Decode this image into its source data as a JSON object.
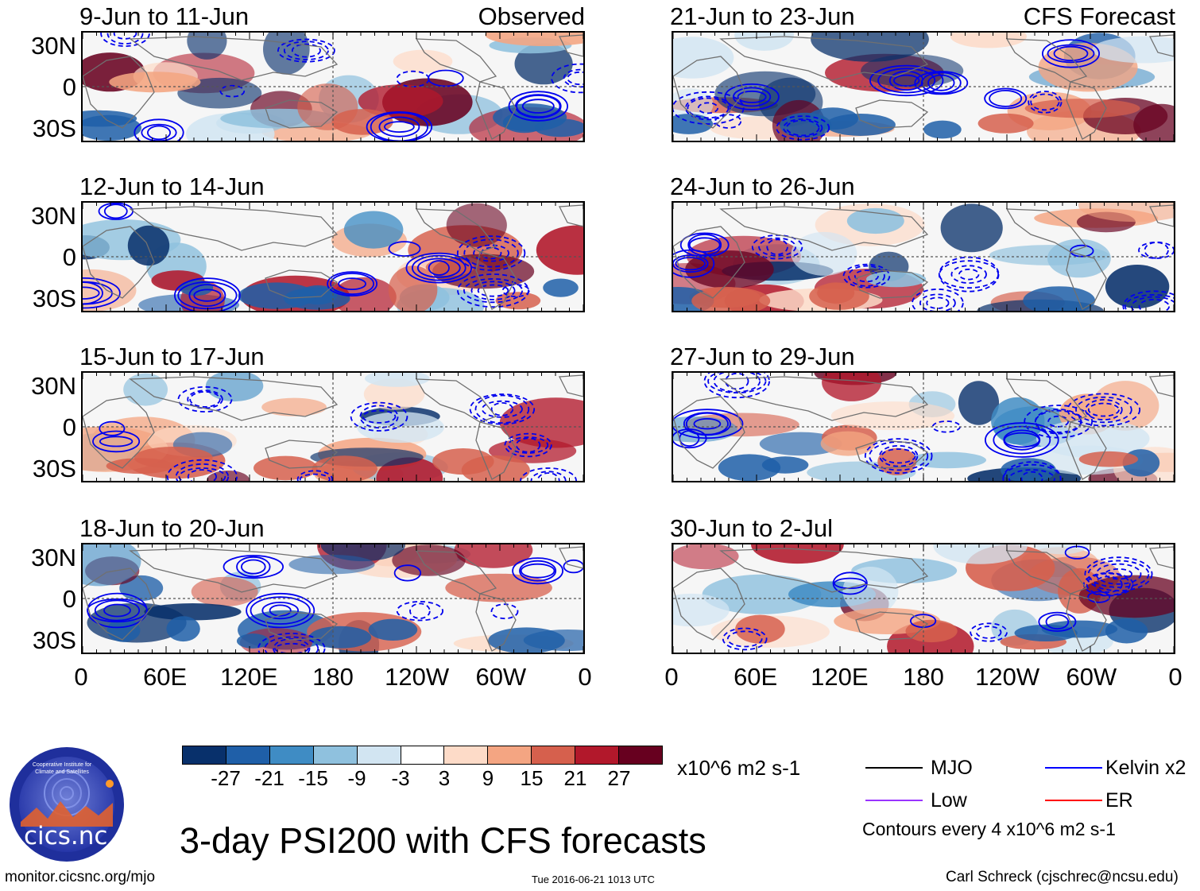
{
  "panels_left": [
    {
      "title": "9-Jun to 11-Jun",
      "tag": "Observed"
    },
    {
      "title": "12-Jun to 14-Jun",
      "tag": ""
    },
    {
      "title": "15-Jun to 17-Jun",
      "tag": ""
    },
    {
      "title": "18-Jun to 20-Jun",
      "tag": ""
    }
  ],
  "panels_right": [
    {
      "title": "21-Jun to 23-Jun",
      "tag": "CFS Forecast"
    },
    {
      "title": "24-Jun to 26-Jun",
      "tag": ""
    },
    {
      "title": "27-Jun to 29-Jun",
      "tag": ""
    },
    {
      "title": "30-Jun to 2-Jul",
      "tag": ""
    }
  ],
  "lat_labels": [
    "30N",
    "0",
    "30S"
  ],
  "lon_labels": [
    "0",
    "60E",
    "120E",
    "180",
    "120W",
    "60W",
    "0"
  ],
  "colorbar": {
    "labels": [
      "-27",
      "-21",
      "-15",
      "-9",
      "-3",
      "3",
      "9",
      "15",
      "21",
      "27"
    ],
    "colors": [
      "#08306b",
      "#1f5fa8",
      "#3f8cc4",
      "#8fc1de",
      "#d2e5f2",
      "#ffffff",
      "#fddbc8",
      "#f4a582",
      "#d6604d",
      "#b2182b",
      "#67001f"
    ],
    "units": "x10^6 m2 s-1"
  },
  "legend": {
    "items": [
      {
        "label": "MJO",
        "color": "#000000"
      },
      {
        "label": "Kelvin x2",
        "color": "#0000ff"
      },
      {
        "label": "Low",
        "color": "#9933ff"
      },
      {
        "label": "ER",
        "color": "#ff0000"
      }
    ],
    "contour_note": "Contours every 4 x10^6 m2 s-1"
  },
  "main_title": "3-day PSI200 with CFS forecasts",
  "logo_text": "cics.nc",
  "logo_ring_text": "Cooperative Institute for Climate and Satellites",
  "footer": {
    "left": "monitor.cicsnc.org/mjo",
    "center": "Tue 2016-06-21 1013 UTC",
    "right": "Carl Schreck (cjschrec@ncsu.edu)"
  }
}
